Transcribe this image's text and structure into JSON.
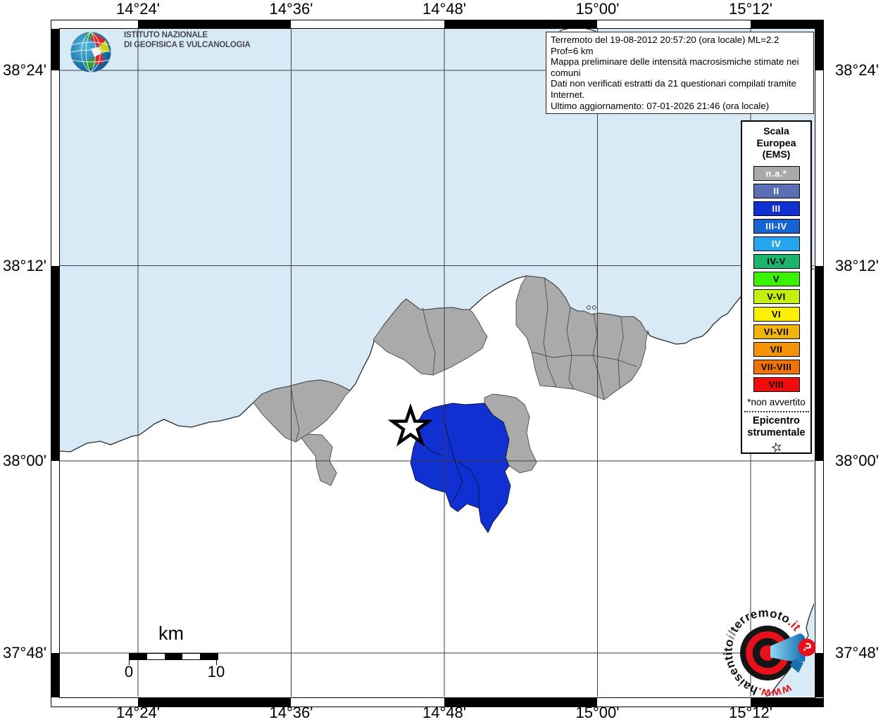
{
  "info_box": {
    "lines": [
      "Terremoto del 19-08-2012 20:57:20 (ora locale) ML=2.2 Prof=6 km",
      "Mappa preliminare delle intensità macrosismiche stimate nei comuni",
      "Dati non verificati estratti da 21 questionari compilati tramite Internet.",
      "Ultimo aggiornamento: 07-01-2026 21:46 (ora locale)"
    ]
  },
  "axes": {
    "top": [
      "14°24'",
      "14°36'",
      "14°48'",
      "15°00'",
      "15°12'"
    ],
    "bottom": [
      "14°24'",
      "14°36'",
      "14°48'",
      "15°00'",
      "15°12'"
    ],
    "left": [
      "38°24'",
      "38°12'",
      "38°00'",
      "37°48'"
    ],
    "right": [
      "38°24'",
      "38°12'",
      "38°00'",
      "37°48'"
    ]
  },
  "legend": {
    "title_lines": [
      "Scala",
      "Europea",
      "(EMS)"
    ],
    "items": [
      {
        "label": "n.a.*",
        "color": "#aaaaaa",
        "text_color": "#ffffff"
      },
      {
        "label": "II",
        "color": "#5c6fb3",
        "text_color": "#ffffff"
      },
      {
        "label": "III",
        "color": "#1130d2",
        "text_color": "#ffffff"
      },
      {
        "label": "III-IV",
        "color": "#1465d2",
        "text_color": "#ffffff"
      },
      {
        "label": "IV",
        "color": "#25a5ee",
        "text_color": "#ffffff"
      },
      {
        "label": "IV-V",
        "color": "#1cb56e",
        "text_color": "#000000"
      },
      {
        "label": "V",
        "color": "#3bf102",
        "text_color": "#000000"
      },
      {
        "label": "V-VI",
        "color": "#c6ef0c",
        "text_color": "#000000"
      },
      {
        "label": "VI",
        "color": "#faf000",
        "text_color": "#000000"
      },
      {
        "label": "VI-VII",
        "color": "#f1b40c",
        "text_color": "#000000"
      },
      {
        "label": "VII",
        "color": "#f29305",
        "text_color": "#000000"
      },
      {
        "label": "VII-VIII",
        "color": "#ef7305",
        "text_color": "#000000"
      },
      {
        "label": "VIII",
        "color": "#f40b0b",
        "text_color": "#000000"
      }
    ],
    "footnote": "*non avvertito",
    "epicenter_lines": [
      "Epicentro",
      "strumentale"
    ]
  },
  "scale_bar": {
    "unit": "km",
    "start": "0",
    "end": "10"
  },
  "ingv_logo": {
    "line1": "ISTITUTO NAZIONALE",
    "line2": "DI GEOFISICA E VULCANOLOGIA"
  },
  "watermark": {
    "www": "www.",
    "hai": "hai",
    "sentito": "sentito",
    "il": "il",
    "terremoto": "terremoto",
    "dot_it": ".it",
    "question_mark": "?"
  },
  "map_colors": {
    "sea": "#d8eaf6",
    "land": "#ffffff",
    "coast": "#2b2b2b"
  }
}
